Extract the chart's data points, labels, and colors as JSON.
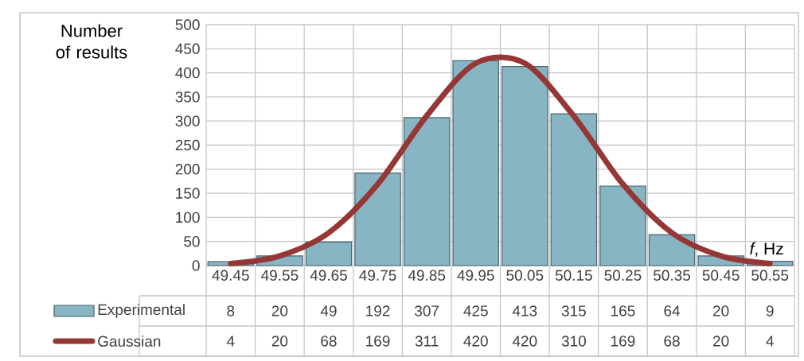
{
  "chart_data": {
    "type": "bar",
    "ylabel": "Number of results",
    "xlabel": "*f*, Hz",
    "categories": [
      "49.45",
      "49.55",
      "49.65",
      "49.75",
      "49.85",
      "49.95",
      "50.05",
      "50.15",
      "50.25",
      "50.35",
      "50.45",
      "50.55"
    ],
    "series": [
      {
        "name": "Experimental",
        "color": "#88b5c4",
        "values": [
          8,
          20,
          49,
          192,
          307,
          425,
          413,
          315,
          165,
          64,
          20,
          9
        ]
      },
      {
        "name": "Gaussian",
        "type": "line",
        "color": "#953735",
        "values": [
          4,
          20,
          68,
          169,
          311,
          420,
          420,
          310,
          169,
          68,
          20,
          4
        ]
      }
    ],
    "ylim": [
      0,
      500
    ],
    "yticks": [
      0,
      50,
      100,
      150,
      200,
      250,
      300,
      350,
      400,
      450,
      500
    ],
    "grid": true,
    "legend": "bottom",
    "data_labels": true,
    "marker": "none"
  }
}
